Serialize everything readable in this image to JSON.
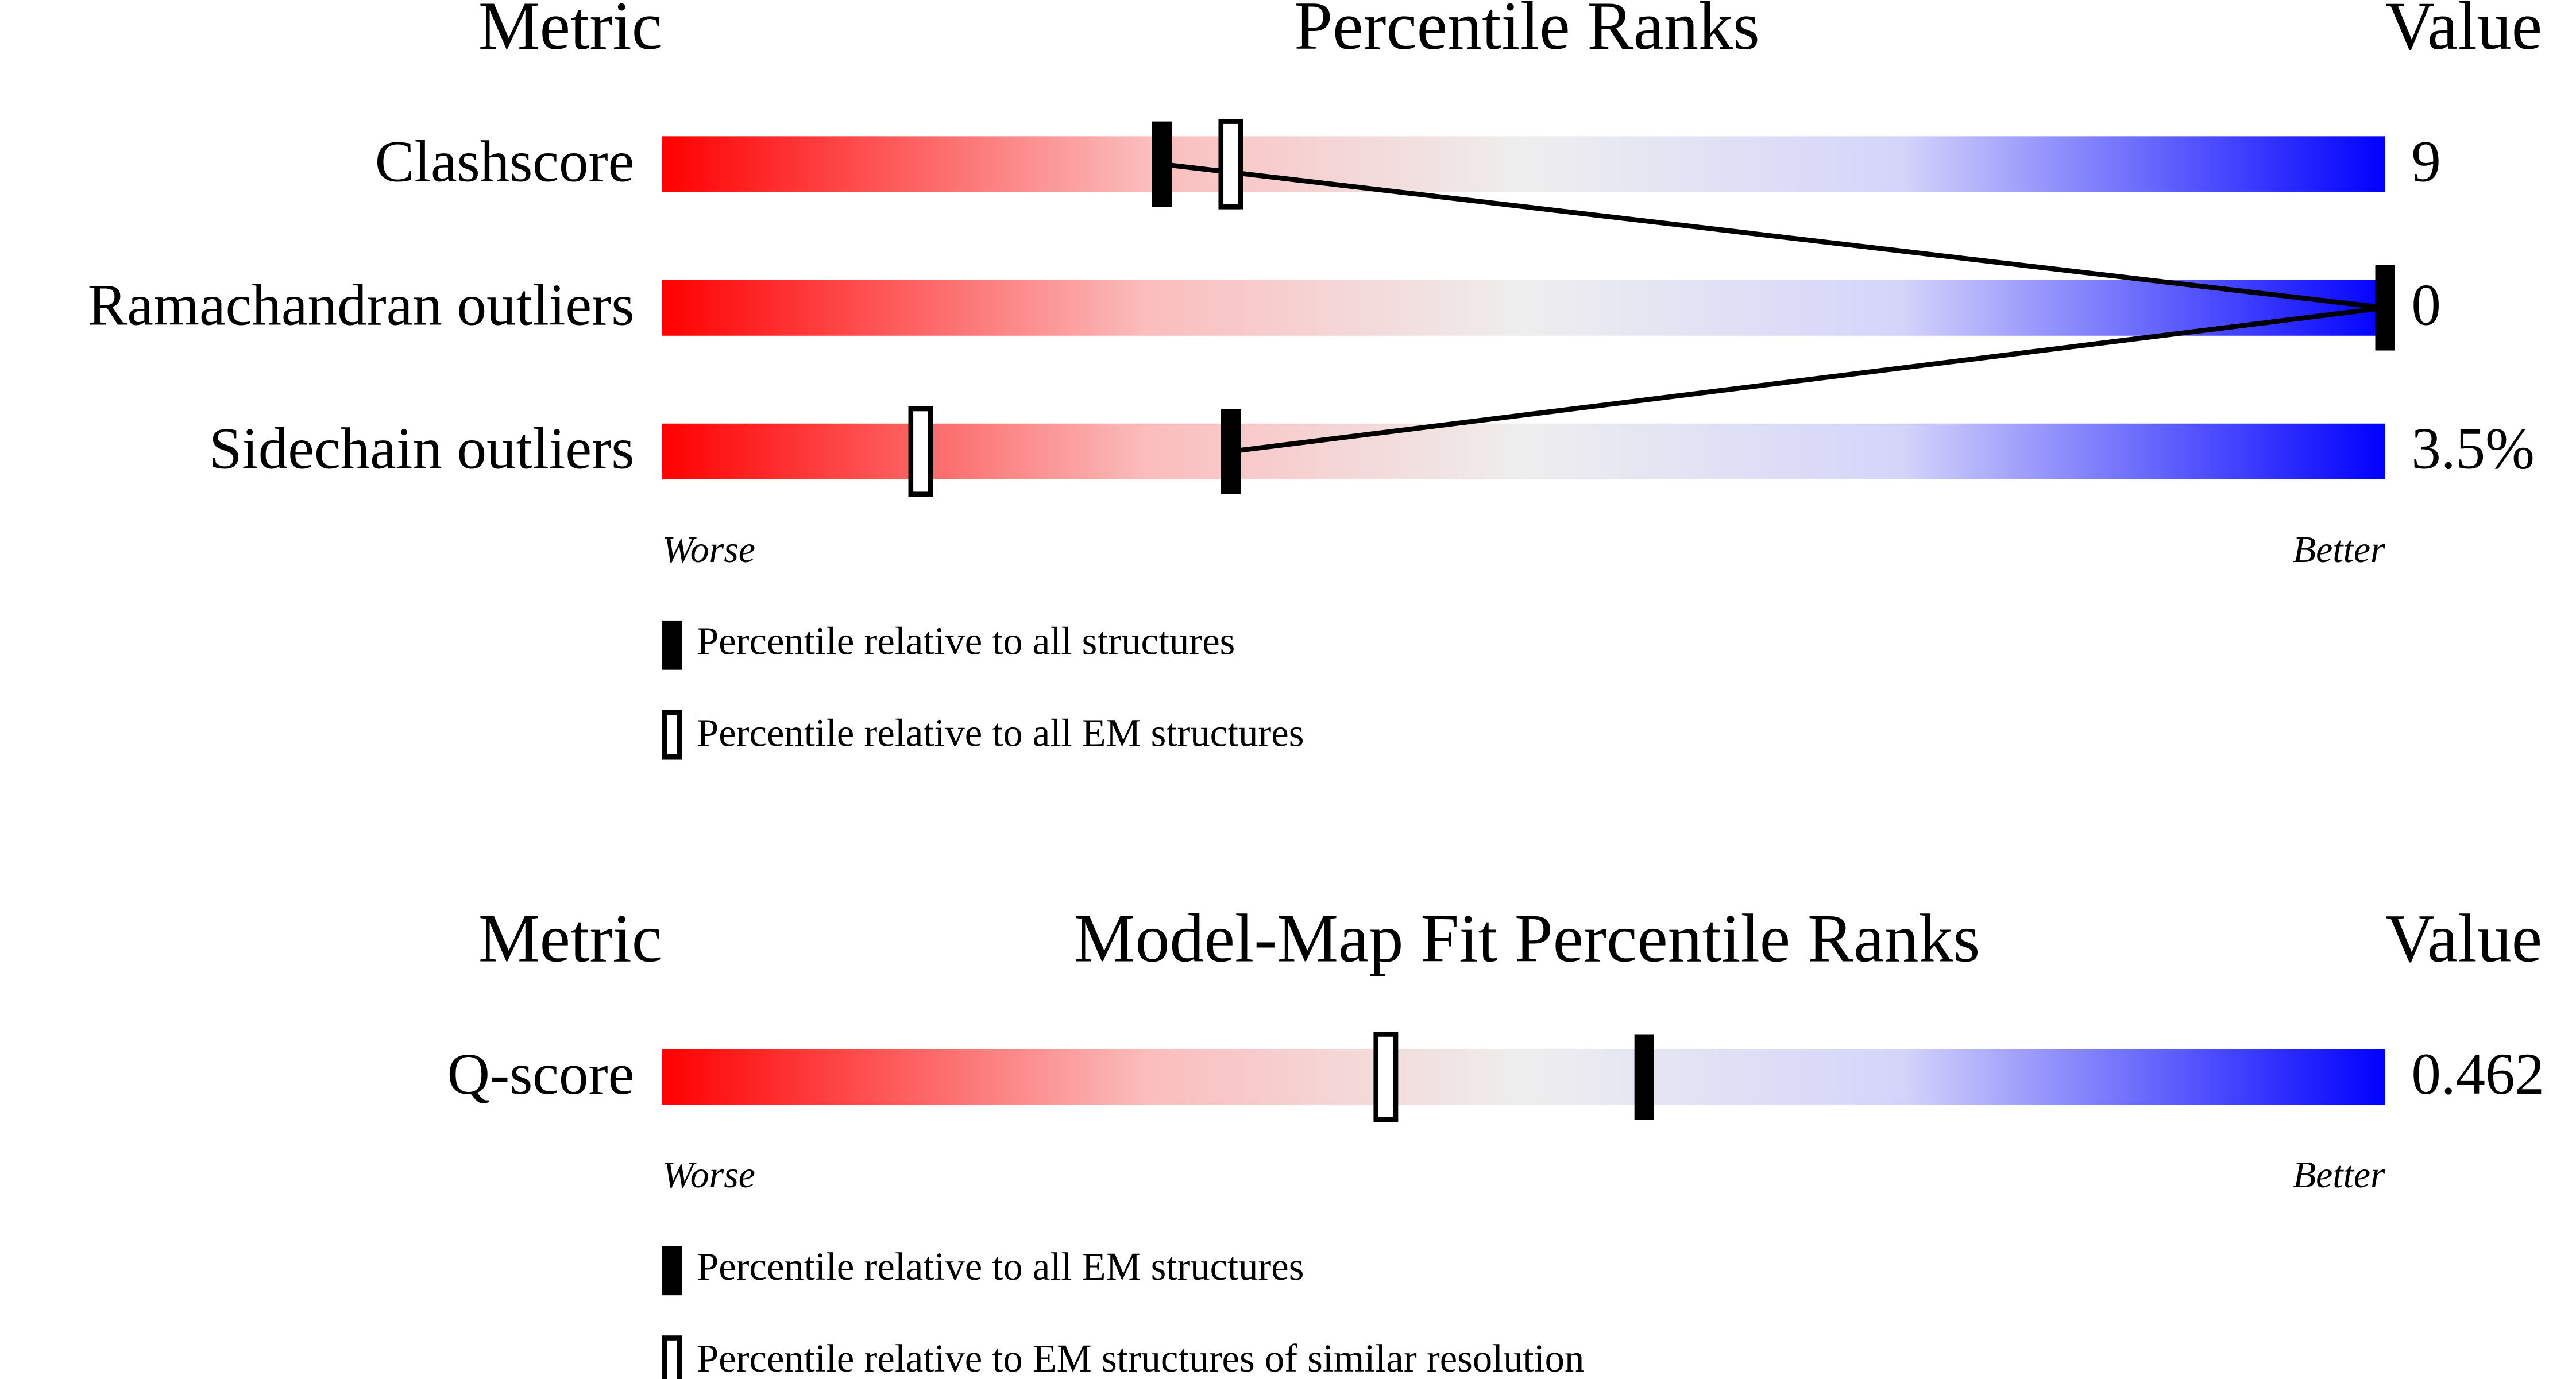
{
  "chart_data": [
    {
      "type": "percentile",
      "metric_header": "Metric",
      "title": "Percentile Ranks",
      "value_header": "Value",
      "categories": [
        "Clashscore",
        "Ramachandran outliers",
        "Sidechain outliers"
      ],
      "metric_values": [
        "9",
        "0",
        "3.5%"
      ],
      "xlim": [
        0,
        100
      ],
      "scale_labels": [
        "Worse",
        "Better"
      ],
      "connect": true,
      "series": [
        {
          "name": "Percentile relative to all structures",
          "style": "filled",
          "color": "#000000",
          "values": [
            29,
            100,
            33
          ]
        },
        {
          "name": "Percentile relative to all EM structures",
          "style": "open",
          "color": "#000000",
          "values": [
            33,
            null,
            15
          ]
        }
      ]
    },
    {
      "type": "percentile",
      "metric_header": "Metric",
      "title": "Model-Map Fit Percentile Ranks",
      "value_header": "Value",
      "categories": [
        "Q-score"
      ],
      "metric_values": [
        "0.462"
      ],
      "xlim": [
        0,
        100
      ],
      "scale_labels": [
        "Worse",
        "Better"
      ],
      "connect": false,
      "series": [
        {
          "name": "Percentile relative to all EM structures",
          "style": "filled",
          "color": "#000000",
          "values": [
            57
          ]
        },
        {
          "name": "Percentile relative to EM structures of similar resolution",
          "style": "open",
          "color": "#000000",
          "values": [
            42
          ]
        }
      ]
    }
  ]
}
